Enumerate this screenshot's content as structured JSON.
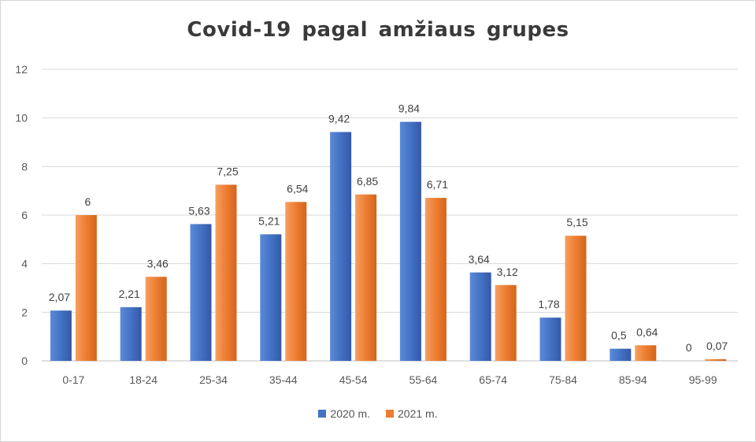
{
  "chart_data": {
    "type": "bar",
    "title": "Covid-19 pagal amžiaus grupes",
    "categories": [
      "0-17",
      "18-24",
      "25-34",
      "35-44",
      "45-54",
      "55-64",
      "65-74",
      "75-84",
      "85-94",
      "95-99"
    ],
    "series": [
      {
        "name": "2020 m.",
        "color": "#4472c4",
        "values": [
          2.07,
          2.21,
          5.63,
          5.21,
          9.42,
          9.84,
          3.64,
          1.78,
          0.5,
          0
        ],
        "labels": [
          "2,07",
          "2,21",
          "5,63",
          "5,21",
          "9,42",
          "9,84",
          "3,64",
          "1,78",
          "0,5",
          "0"
        ]
      },
      {
        "name": "2021 m.",
        "color": "#ed7d31",
        "values": [
          6,
          3.46,
          7.25,
          6.54,
          6.85,
          6.71,
          3.12,
          5.15,
          0.64,
          0.07
        ],
        "labels": [
          "6",
          "3,46",
          "7,25",
          "6,54",
          "6,85",
          "6,71",
          "3,12",
          "5,15",
          "0,64",
          "0,07"
        ]
      }
    ],
    "ylim": [
      0,
      12
    ],
    "yticks": [
      0,
      2,
      4,
      6,
      8,
      10,
      12
    ],
    "grid": true,
    "legend": "bottom"
  }
}
